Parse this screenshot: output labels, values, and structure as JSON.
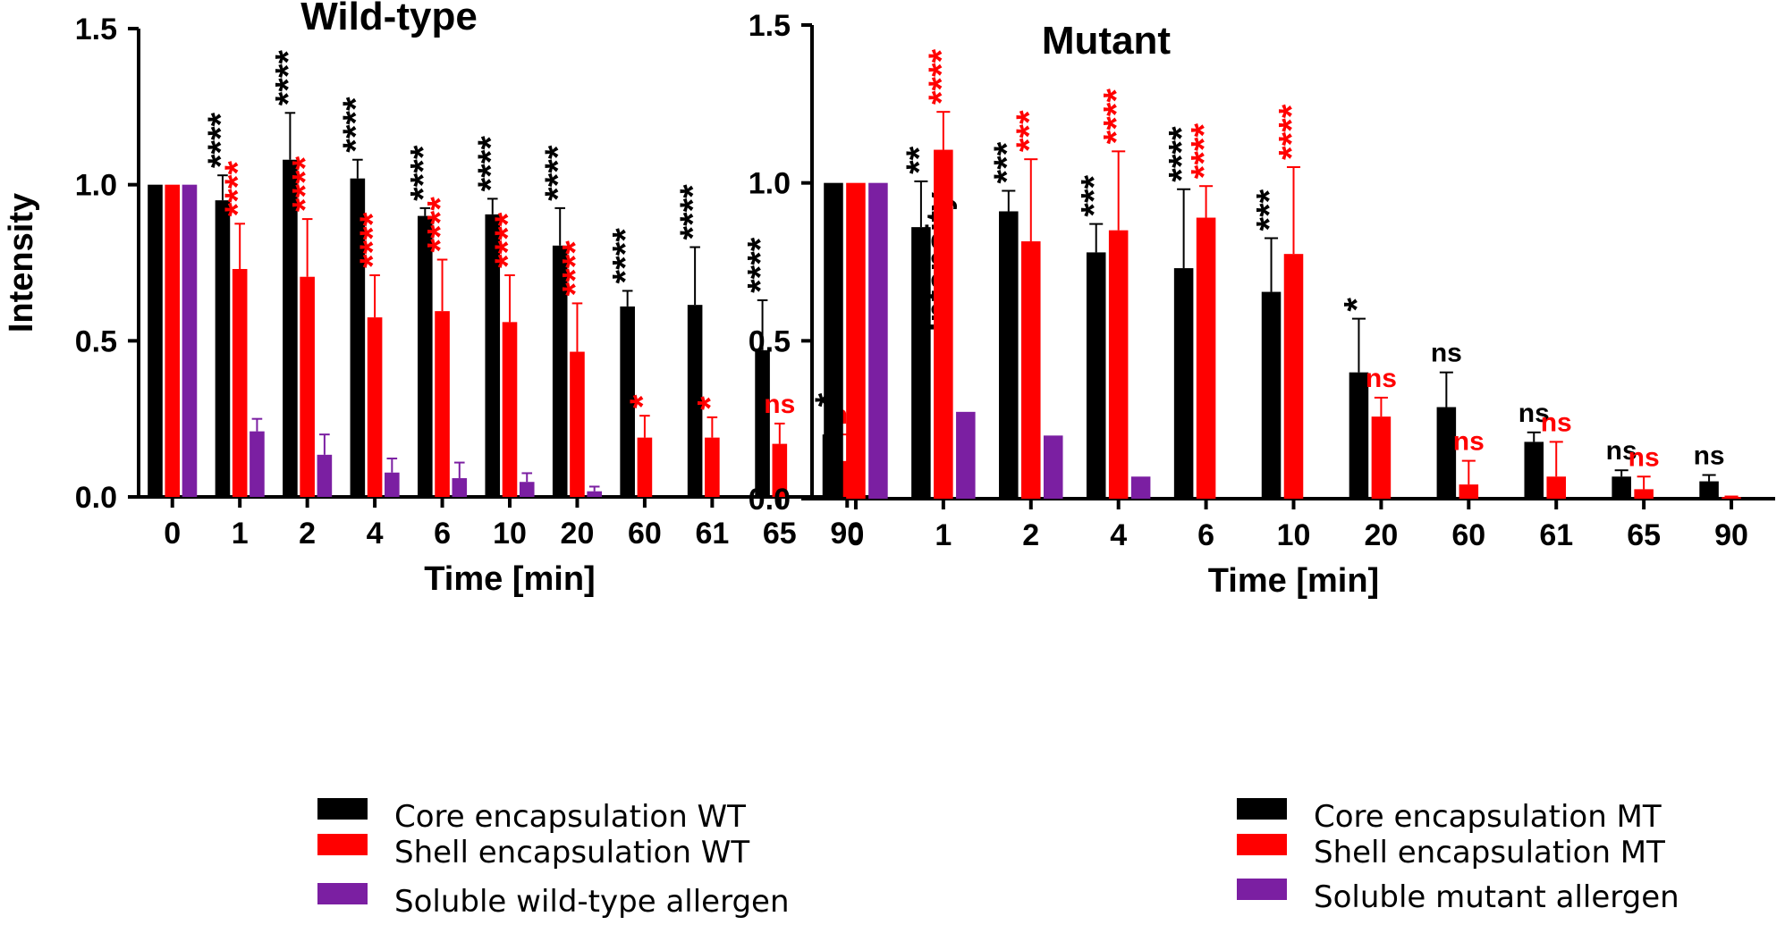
{
  "colors": {
    "core": "#000000",
    "shell": "#ff0000",
    "soluble": "#7b1fa2"
  },
  "chart_data": [
    {
      "type": "bar",
      "title": "Wild-type",
      "xlabel": "Time [min]",
      "ylabel": "Intensity",
      "ylim": [
        0,
        1.5
      ],
      "yticks": [
        "0.0",
        "0.5",
        "1.0",
        "1.5"
      ],
      "categories": [
        "0",
        "1",
        "2",
        "4",
        "6",
        "10",
        "20",
        "60",
        "61",
        "65",
        "90"
      ],
      "series": [
        {
          "name": "Core encapsulation WT",
          "color": "#000000",
          "values": [
            1.0,
            0.95,
            1.08,
            1.02,
            0.9,
            0.905,
            0.805,
            0.61,
            0.615,
            0.47,
            0.2
          ],
          "errors": [
            0,
            0.08,
            0.15,
            0.06,
            0.025,
            0.05,
            0.12,
            0.05,
            0.185,
            0.16,
            0.065
          ],
          "significance": [
            "",
            "****",
            "****",
            "****",
            "****",
            "****",
            "****",
            "****",
            "****",
            "****",
            "*"
          ]
        },
        {
          "name": "Shell encapsulation WT",
          "color": "#ff0000",
          "values": [
            1.0,
            0.73,
            0.705,
            0.575,
            0.595,
            0.56,
            0.465,
            0.19,
            0.19,
            0.17,
            0.115
          ],
          "errors": [
            0,
            0.145,
            0.185,
            0.135,
            0.165,
            0.15,
            0.155,
            0.07,
            0.065,
            0.065,
            0.085
          ],
          "significance": [
            "",
            "****",
            "****",
            "****",
            "****",
            "****",
            "****",
            "*",
            "*",
            "ns",
            "ns"
          ]
        },
        {
          "name": "Soluble wild-type allergen",
          "color": "#7b1fa2",
          "values": [
            1.0,
            0.21,
            0.135,
            0.078,
            0.06,
            0.048,
            0.018,
            null,
            null,
            null,
            null
          ],
          "errors": [
            0,
            0.04,
            0.065,
            0.045,
            0.05,
            0.028,
            0.015,
            null,
            null,
            null,
            null
          ],
          "significance": [
            "",
            "",
            "",
            "",
            "",
            "",
            "",
            "",
            "",
            "",
            ""
          ]
        }
      ],
      "legend": [
        "Core encapsulation WT",
        "Shell encapsulation WT",
        "Soluble wild-type allergen"
      ]
    },
    {
      "type": "bar",
      "title": "Mutant",
      "xlabel": "Time [min]",
      "ylabel": "Intensity",
      "ylim": [
        0,
        1.5
      ],
      "yticks": [
        "0.0",
        "0.5",
        "1.0",
        "1.5"
      ],
      "categories": [
        "0",
        "1",
        "2",
        "4",
        "6",
        "10",
        "20",
        "60",
        "61",
        "65",
        "90"
      ],
      "series": [
        {
          "name": "Core encapsulation MT",
          "color": "#000000",
          "values": [
            1.0,
            0.86,
            0.91,
            0.78,
            0.73,
            0.655,
            0.4,
            0.29,
            0.18,
            0.07,
            0.055
          ],
          "errors": [
            0,
            0.145,
            0.065,
            0.09,
            0.25,
            0.17,
            0.17,
            0.11,
            0.03,
            0.02,
            0.02
          ],
          "significance": [
            "",
            "**",
            "***",
            "***",
            "****",
            "***",
            "*",
            "ns",
            "ns",
            "ns",
            "ns"
          ]
        },
        {
          "name": "Shell encapsulation MT",
          "color": "#ff0000",
          "values": [
            1.0,
            1.105,
            0.815,
            0.85,
            0.89,
            0.775,
            0.26,
            0.045,
            0.07,
            0.03,
            0.005
          ],
          "errors": [
            0,
            0.12,
            0.26,
            0.25,
            0.1,
            0.275,
            0.06,
            0.075,
            0.11,
            0.04,
            0.002
          ],
          "significance": [
            "",
            "****",
            "***",
            "****",
            "****",
            "****",
            "ns",
            "ns",
            "ns",
            "ns",
            ""
          ]
        },
        {
          "name": "Soluble mutant allergen",
          "color": "#7b1fa2",
          "values": [
            1.0,
            0.275,
            0.2,
            0.07,
            null,
            null,
            null,
            null,
            null,
            null,
            null
          ],
          "errors": [
            0,
            0,
            0,
            0,
            null,
            null,
            null,
            null,
            null,
            null,
            null
          ],
          "significance": [
            "",
            "",
            "",
            "",
            "",
            "",
            "",
            "",
            "",
            "",
            ""
          ]
        }
      ],
      "legend": [
        "Core encapsulation MT",
        "Shell encapsulation MT",
        "Soluble mutant allergen"
      ]
    }
  ]
}
